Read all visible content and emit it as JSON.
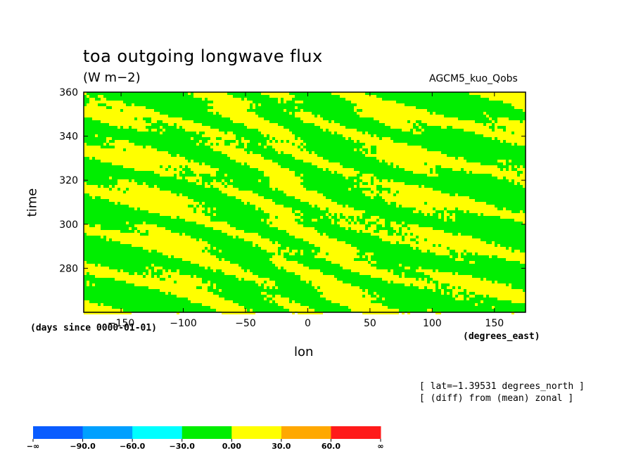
{
  "chart_data": {
    "type": "heatmap",
    "title": "toa outgoing longwave flux",
    "units": "(W m−2)",
    "dataset_label": "AGCM5_kuo_Qobs",
    "xlabel": "lon",
    "ylabel": "time",
    "x_units_label": "(degrees_east)",
    "y_units_label": "(days since 0000-01-01)",
    "xlim": [
      -180,
      175
    ],
    "ylim": [
      260,
      360
    ],
    "x_ticks": [
      -150,
      -100,
      -50,
      0,
      50,
      100,
      150
    ],
    "x_tick_labels": [
      "−150",
      "−100",
      "−50",
      "0",
      "50",
      "100",
      "150"
    ],
    "y_ticks": [
      280,
      300,
      320,
      340,
      360
    ],
    "y_tick_labels": [
      "280",
      "300",
      "320",
      "340",
      "360"
    ],
    "contour_levels": [
      -90,
      -60,
      -30,
      0,
      30,
      60
    ],
    "colorbar": {
      "colors": [
        "#0a5cff",
        "#00a0ff",
        "#00ffff",
        "#00ee00",
        "#ffff00",
        "#ffa800",
        "#ff1a1a"
      ],
      "labels": [
        "−∞",
        "−90.0",
        "−60.0",
        "−30.0",
        "0.00",
        "30.0",
        "60.0",
        "∞"
      ]
    },
    "field_description": "Hovmoller of zonal anomaly; values mostly between −30 and 30, green (−30 to 0) and yellow (0 to 30) streaks slanting eastward-downward in time"
  },
  "annotations": {
    "lat_line": "[ lat=−1.39531 degrees_north ]",
    "diff_line": "[ (diff) from (mean) zonal ]"
  }
}
